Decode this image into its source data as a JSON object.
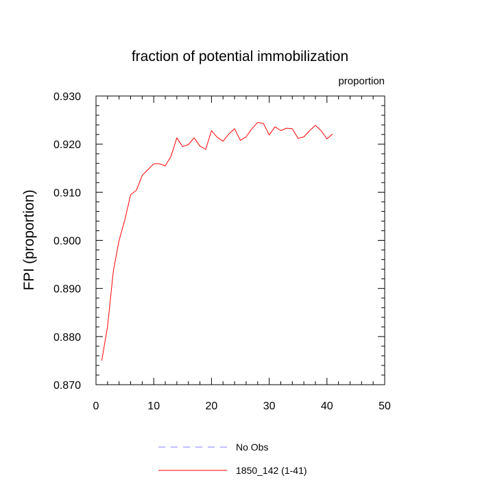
{
  "chart_data": {
    "type": "line",
    "title": "fraction of potential immobilization",
    "units_label": "proportion",
    "ylabel": "FPI  (proportion)",
    "xlabel": "",
    "xlim": [
      0,
      50
    ],
    "ylim": [
      0.87,
      0.93
    ],
    "xticks": [
      0,
      10,
      20,
      30,
      40,
      50
    ],
    "xtick_labels": [
      "0",
      "10",
      "20",
      "30",
      "40",
      "50"
    ],
    "yticks": [
      0.87,
      0.88,
      0.89,
      0.9,
      0.91,
      0.92,
      0.93
    ],
    "ytick_labels": [
      "0.870",
      "0.880",
      "0.890",
      "0.900",
      "0.910",
      "0.920",
      "0.930"
    ],
    "grid": false,
    "legend_position": "bottom",
    "series": [
      {
        "name": "1850_142 (1-41)",
        "color": "#ff0000",
        "style": "solid",
        "x": [
          1,
          2,
          3,
          4,
          5,
          6,
          7,
          8,
          9,
          10,
          11,
          12,
          13,
          14,
          15,
          16,
          17,
          18,
          19,
          20,
          21,
          22,
          23,
          24,
          25,
          26,
          27,
          28,
          29,
          30,
          31,
          32,
          33,
          34,
          35,
          36,
          37,
          38,
          39,
          40,
          41
        ],
        "values": [
          0.875,
          0.8821,
          0.8936,
          0.9,
          0.9043,
          0.9095,
          0.9104,
          0.9135,
          0.9147,
          0.9159,
          0.9159,
          0.9155,
          0.9175,
          0.9213,
          0.9195,
          0.9199,
          0.9213,
          0.9196,
          0.9189,
          0.9228,
          0.9214,
          0.9206,
          0.9221,
          0.9232,
          0.9208,
          0.9215,
          0.9232,
          0.9245,
          0.9243,
          0.9219,
          0.9236,
          0.9228,
          0.9233,
          0.9232,
          0.9212,
          0.9215,
          0.9228,
          0.9239,
          0.9228,
          0.9211,
          0.9221
        ]
      }
    ],
    "legend": [
      {
        "label": "No Obs",
        "color": "#8080ff",
        "style": "dashed"
      },
      {
        "label": "1850_142 (1-41)",
        "color": "#ff0000",
        "style": "solid"
      }
    ]
  }
}
